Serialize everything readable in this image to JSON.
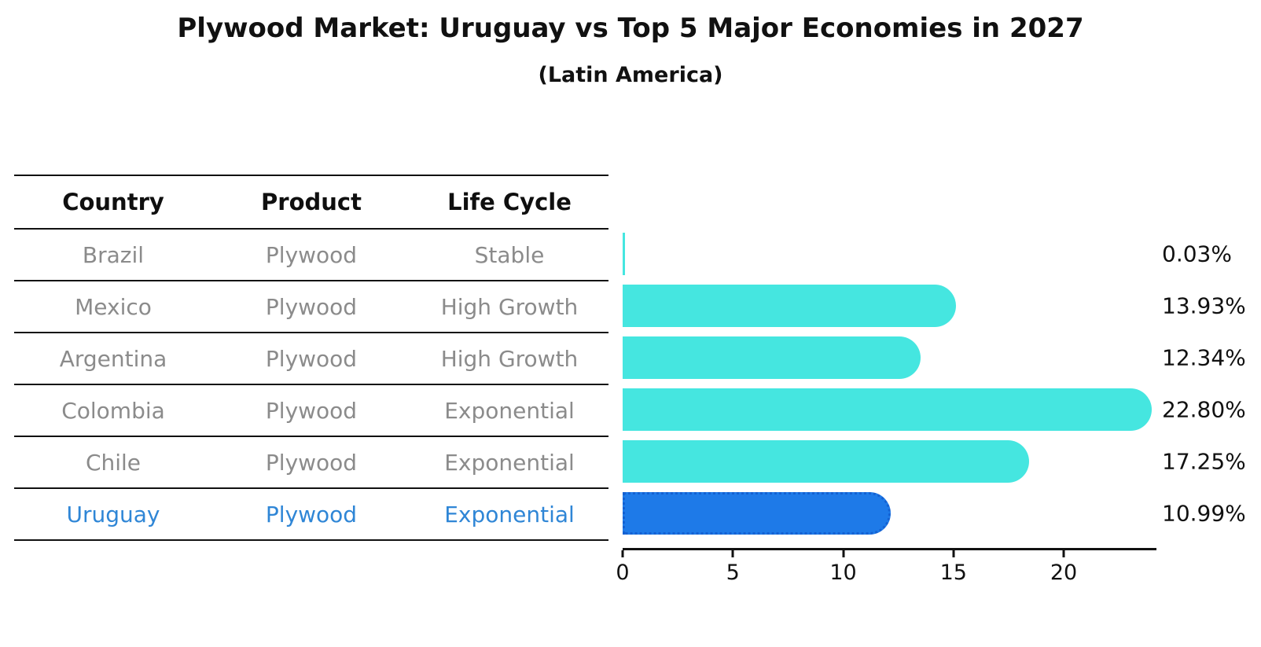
{
  "title": "Plywood Market: Uruguay vs Top 5 Major Economies in 2027",
  "subtitle": "(Latin America)",
  "table": {
    "headers": [
      "Country",
      "Product",
      "Life Cycle"
    ],
    "rows": [
      {
        "country": "Brazil",
        "product": "Plywood",
        "life_cycle": "Stable"
      },
      {
        "country": "Mexico",
        "product": "Plywood",
        "life_cycle": "High Growth"
      },
      {
        "country": "Argentina",
        "product": "Plywood",
        "life_cycle": "High Growth"
      },
      {
        "country": "Colombia",
        "product": "Plywood",
        "life_cycle": "Exponential"
      },
      {
        "country": "Chile",
        "product": "Plywood",
        "life_cycle": "Exponential"
      },
      {
        "country": "Uruguay",
        "product": "Plywood",
        "life_cycle": "Exponential"
      }
    ]
  },
  "chart_data": {
    "type": "bar",
    "orientation": "horizontal",
    "title": "Plywood Market: Uruguay vs Top 5 Major Economies in 2027",
    "subtitle": "(Latin America)",
    "categories": [
      "Brazil",
      "Mexico",
      "Argentina",
      "Colombia",
      "Chile",
      "Uruguay"
    ],
    "values": [
      0.03,
      13.93,
      12.34,
      22.8,
      17.25,
      10.99
    ],
    "value_labels": [
      "0.03%",
      "13.93%",
      "12.34%",
      "22.80%",
      "17.25%",
      "10.99%"
    ],
    "x_ticks": [
      0,
      5,
      10,
      15,
      20
    ],
    "xlim": [
      0,
      24.2
    ],
    "grid": false,
    "legend": null,
    "bar_color": "#45e6e0",
    "highlight_index": 5,
    "highlight_color": "#1e7ae8",
    "highlight_border_color": "#1461d2"
  },
  "colors": {
    "text": "#111111",
    "muted_text": "#8b8b8b",
    "highlight_text": "#2f86d6",
    "axis": "#111111"
  }
}
